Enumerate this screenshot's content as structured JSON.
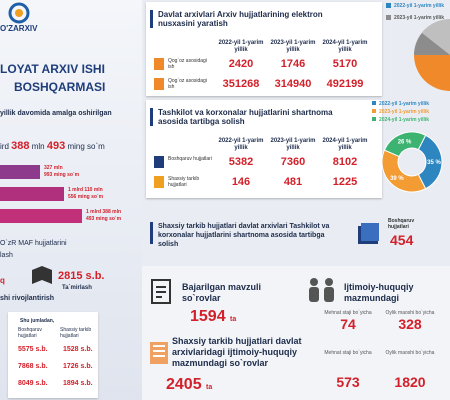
{
  "left": {
    "logo": "O'ZARXIV",
    "title_line1": "LOYAT ARXIV ISHI",
    "title_line2": "BOSHQARMASI",
    "subtitle": "yillik davomida amalga oshirilgan",
    "total_prefix": "ird",
    "total_a": "388",
    "total_a_unit": "mln",
    "total_b": "493",
    "total_b_unit": "ming so`m",
    "bars": [
      [
        "327 mln",
        "993 ming so`m"
      ],
      [
        "1 mlrd 110 mln",
        "556 ming so`m"
      ],
      [
        "1 mlrd 388 mln",
        "493 ming so`m"
      ]
    ],
    "maf_title": "O`zR MAF hujjatlarini",
    "maf_sub": "lash",
    "maf_left": "q",
    "maf_value": "2815 s.b.",
    "maf_caption": "Ta`mirlash",
    "dev_title": "shi rivojlantirish",
    "table": {
      "caption": "Shu jumladan,",
      "headers": [
        "Boshqaruv hujjatlari",
        "Shaxsiy tarkib hujjatlari"
      ],
      "rows": [
        [
          "5575 s.b.",
          "1528 s.b."
        ],
        [
          "7868 s.b.",
          "1726 s.b."
        ],
        [
          "8049 s.b.",
          "1894 s.b."
        ]
      ]
    }
  },
  "digitization": {
    "title": "Davlat arxivlari Arxiv hujjatlarining elektron nusxasini yaratish",
    "years": [
      "2022-yil 1-yarim yillik",
      "2023-yil 1-yarim yillik",
      "2024-yil 1-yarim yillik"
    ],
    "rows": [
      {
        "label": "Qog`oz asosidagi ish",
        "values": [
          2420,
          1746,
          5170
        ]
      },
      {
        "label": "Qog`oz asosidagi ish",
        "values": [
          351268,
          314940,
          492199
        ]
      }
    ],
    "pie_legend": [
      "2022-yil 1-yarim yillik",
      "2023-yil 1-yarim yillik"
    ]
  },
  "contracts": {
    "title": "Tashkilot va korxonalar hujjatlarini shartnoma asosida tartibga solish",
    "years": [
      "2022-yil 1-yarim yillik",
      "2023-yil 1-yarim yillik",
      "2024-yil 1-yarim yillik"
    ],
    "rows": [
      {
        "label": "Boshqaruv hujjatlari",
        "values": [
          5382,
          7360,
          8102
        ]
      },
      {
        "label": "Shaxsiy tarkib hujjatlari",
        "values": [
          146,
          481,
          1225
        ]
      }
    ],
    "donut": {
      "legend": [
        "2022-yil 1-yarim yillik",
        "2023-yil 1-yarim yillik",
        "2024-yil 1-yarim yillik"
      ],
      "colors": [
        "#2e86c1",
        "#f39c34",
        "#3cb371"
      ],
      "values": [
        35,
        39,
        26
      ],
      "value_labels": [
        "35 %",
        "39 %",
        "26 %"
      ]
    }
  },
  "personnel": {
    "title": "Shaxsiy tarkib hujjatlari davlat arxivlari Tashkilot va korxonalar hujjatlarini shartnoma asosida tartibga solish",
    "label": "Boshqaruv hujjatlari",
    "value": 454
  },
  "queries": {
    "title": "Bajarilgan mavzuli so`rovlar",
    "value": 1594,
    "unit": "ta"
  },
  "social": {
    "title": "Ijtimoiy-huquqiy mazmundagi",
    "labels": [
      "Mehnat staji bo`yicha",
      "Oylik maoshi bo`yicha"
    ],
    "values": [
      74,
      328
    ]
  },
  "archive_social": {
    "title": "Shaxsiy tarkib hujjatlari davlat arxivlaridagi ijtimoiy-huquqiy mazmundagi so`rovlar",
    "value": 2405,
    "unit": "ta",
    "labels": [
      "Mehnat staji bo`yicha",
      "Oylik maoshi bo`yicha"
    ],
    "values": [
      573,
      1820
    ]
  }
}
